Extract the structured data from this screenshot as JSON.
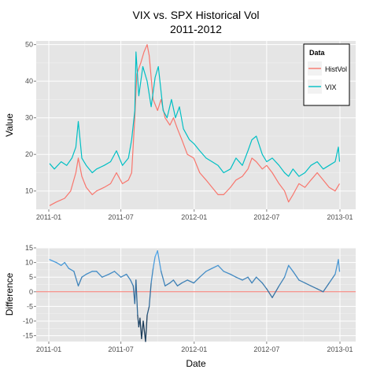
{
  "chart_data": [
    {
      "type": "line",
      "title_line1": "VIX vs. SPX Historical Vol",
      "title_line2": "2011-2012",
      "xlabel": "",
      "ylabel": "Value",
      "x_ticks": [
        "2011-01",
        "2011-07",
        "2012-01",
        "2012-07",
        "2013-01"
      ],
      "y_ticks": [
        10,
        20,
        30,
        40,
        50
      ],
      "ylim": [
        5,
        51
      ],
      "grid": true,
      "legend": {
        "title": "Data",
        "position": "top-right"
      },
      "series": [
        {
          "name": "HistVol",
          "color": "#F8766D",
          "points": [
            [
              "2011-01-03",
              6
            ],
            [
              "2011-01-20",
              7
            ],
            [
              "2011-02-10",
              8
            ],
            [
              "2011-02-25",
              10
            ],
            [
              "2011-03-10",
              15
            ],
            [
              "2011-03-16",
              19
            ],
            [
              "2011-03-25",
              14
            ],
            [
              "2011-04-05",
              11
            ],
            [
              "2011-04-20",
              9
            ],
            [
              "2011-05-01",
              10
            ],
            [
              "2011-05-20",
              11
            ],
            [
              "2011-06-05",
              12
            ],
            [
              "2011-06-20",
              15
            ],
            [
              "2011-07-05",
              12
            ],
            [
              "2011-07-20",
              13
            ],
            [
              "2011-07-28",
              15
            ],
            [
              "2011-08-05",
              30
            ],
            [
              "2011-08-10",
              42
            ],
            [
              "2011-08-20",
              45
            ],
            [
              "2011-08-28",
              48
            ],
            [
              "2011-09-05",
              50
            ],
            [
              "2011-09-10",
              47
            ],
            [
              "2011-09-20",
              35
            ],
            [
              "2011-10-01",
              32
            ],
            [
              "2011-10-10",
              35
            ],
            [
              "2011-10-20",
              30
            ],
            [
              "2011-11-01",
              28
            ],
            [
              "2011-11-10",
              30
            ],
            [
              "2011-11-20",
              27
            ],
            [
              "2011-12-01",
              24
            ],
            [
              "2011-12-15",
              20
            ],
            [
              "2011-12-31",
              19
            ],
            [
              "2012-01-15",
              15
            ],
            [
              "2012-01-31",
              13
            ],
            [
              "2012-02-15",
              11
            ],
            [
              "2012-03-01",
              9
            ],
            [
              "2012-03-15",
              9
            ],
            [
              "2012-04-01",
              11
            ],
            [
              "2012-04-15",
              13
            ],
            [
              "2012-05-01",
              14
            ],
            [
              "2012-05-15",
              16
            ],
            [
              "2012-05-25",
              19
            ],
            [
              "2012-06-05",
              18
            ],
            [
              "2012-06-20",
              16
            ],
            [
              "2012-07-01",
              17
            ],
            [
              "2012-07-15",
              15
            ],
            [
              "2012-08-01",
              12
            ],
            [
              "2012-08-15",
              10
            ],
            [
              "2012-08-25",
              7
            ],
            [
              "2012-09-05",
              9
            ],
            [
              "2012-09-20",
              12
            ],
            [
              "2012-10-05",
              11
            ],
            [
              "2012-10-20",
              13
            ],
            [
              "2012-11-05",
              15
            ],
            [
              "2012-11-20",
              13
            ],
            [
              "2012-12-05",
              11
            ],
            [
              "2012-12-20",
              10
            ],
            [
              "2012-12-31",
              12
            ]
          ]
        },
        {
          "name": "VIX",
          "color": "#00BFC4",
          "points": [
            [
              "2011-01-03",
              17.5
            ],
            [
              "2011-01-15",
              16
            ],
            [
              "2011-02-01",
              18
            ],
            [
              "2011-02-15",
              17
            ],
            [
              "2011-02-28",
              19
            ],
            [
              "2011-03-10",
              22
            ],
            [
              "2011-03-16",
              29
            ],
            [
              "2011-03-25",
              19
            ],
            [
              "2011-04-05",
              17
            ],
            [
              "2011-04-20",
              15
            ],
            [
              "2011-05-01",
              16
            ],
            [
              "2011-05-20",
              17
            ],
            [
              "2011-06-05",
              18
            ],
            [
              "2011-06-20",
              21
            ],
            [
              "2011-07-05",
              17
            ],
            [
              "2011-07-20",
              19
            ],
            [
              "2011-07-28",
              24
            ],
            [
              "2011-08-05",
              32
            ],
            [
              "2011-08-08",
              48
            ],
            [
              "2011-08-15",
              36
            ],
            [
              "2011-08-25",
              44
            ],
            [
              "2011-09-05",
              40
            ],
            [
              "2011-09-15",
              33
            ],
            [
              "2011-09-25",
              41
            ],
            [
              "2011-10-03",
              44
            ],
            [
              "2011-10-15",
              32
            ],
            [
              "2011-10-25",
              30
            ],
            [
              "2011-11-05",
              35
            ],
            [
              "2011-11-15",
              30
            ],
            [
              "2011-11-25",
              33
            ],
            [
              "2011-12-05",
              27
            ],
            [
              "2011-12-20",
              24
            ],
            [
              "2011-12-31",
              23
            ],
            [
              "2012-01-15",
              21
            ],
            [
              "2012-01-31",
              19
            ],
            [
              "2012-02-15",
              18
            ],
            [
              "2012-03-01",
              17
            ],
            [
              "2012-03-15",
              15
            ],
            [
              "2012-04-01",
              16
            ],
            [
              "2012-04-15",
              19
            ],
            [
              "2012-05-01",
              17
            ],
            [
              "2012-05-15",
              21
            ],
            [
              "2012-05-25",
              24
            ],
            [
              "2012-06-05",
              25
            ],
            [
              "2012-06-20",
              20
            ],
            [
              "2012-07-01",
              18
            ],
            [
              "2012-07-15",
              19
            ],
            [
              "2012-08-01",
              17
            ],
            [
              "2012-08-15",
              15
            ],
            [
              "2012-08-25",
              14
            ],
            [
              "2012-09-05",
              16
            ],
            [
              "2012-09-20",
              14
            ],
            [
              "2012-10-05",
              15
            ],
            [
              "2012-10-20",
              17
            ],
            [
              "2012-11-05",
              18
            ],
            [
              "2012-11-20",
              16
            ],
            [
              "2012-12-05",
              17
            ],
            [
              "2012-12-20",
              18
            ],
            [
              "2012-12-28",
              22
            ],
            [
              "2012-12-31",
              18
            ]
          ]
        }
      ]
    },
    {
      "type": "line",
      "xlabel": "Date",
      "ylabel": "Difference",
      "x_ticks": [
        "2011-01",
        "2011-07",
        "2012-01",
        "2012-07",
        "2013-01"
      ],
      "y_ticks": [
        15,
        10,
        5,
        0,
        -5,
        -10,
        -15
      ],
      "ylim": [
        -17,
        15
      ],
      "grid": true,
      "reference_line": {
        "y": 0,
        "color": "#F8766D"
      },
      "color_low": "#132B43",
      "color_high": "#56B1F7",
      "points": [
        [
          "2011-01-03",
          11
        ],
        [
          "2011-01-20",
          10
        ],
        [
          "2011-02-01",
          9
        ],
        [
          "2011-02-10",
          10
        ],
        [
          "2011-02-20",
          8
        ],
        [
          "2011-03-05",
          7
        ],
        [
          "2011-03-16",
          2
        ],
        [
          "2011-03-25",
          5
        ],
        [
          "2011-04-05",
          6
        ],
        [
          "2011-04-20",
          7
        ],
        [
          "2011-05-01",
          7
        ],
        [
          "2011-05-15",
          5
        ],
        [
          "2011-06-01",
          6
        ],
        [
          "2011-06-15",
          7
        ],
        [
          "2011-07-01",
          5
        ],
        [
          "2011-07-15",
          6
        ],
        [
          "2011-07-25",
          4
        ],
        [
          "2011-08-01",
          2
        ],
        [
          "2011-08-05",
          -4
        ],
        [
          "2011-08-08",
          4
        ],
        [
          "2011-08-12",
          -8
        ],
        [
          "2011-08-15",
          -12
        ],
        [
          "2011-08-18",
          -9
        ],
        [
          "2011-08-22",
          -16
        ],
        [
          "2011-08-26",
          -10
        ],
        [
          "2011-09-01",
          -17
        ],
        [
          "2011-09-05",
          -8
        ],
        [
          "2011-09-10",
          -5
        ],
        [
          "2011-09-15",
          3
        ],
        [
          "2011-09-20",
          8
        ],
        [
          "2011-09-25",
          12
        ],
        [
          "2011-10-01",
          14
        ],
        [
          "2011-10-10",
          7
        ],
        [
          "2011-10-20",
          2
        ],
        [
          "2011-11-01",
          3
        ],
        [
          "2011-11-10",
          4
        ],
        [
          "2011-11-20",
          2
        ],
        [
          "2011-12-01",
          3
        ],
        [
          "2011-12-15",
          4
        ],
        [
          "2011-12-31",
          3
        ],
        [
          "2012-01-15",
          5
        ],
        [
          "2012-01-31",
          7
        ],
        [
          "2012-02-15",
          8
        ],
        [
          "2012-03-01",
          9
        ],
        [
          "2012-03-15",
          7
        ],
        [
          "2012-04-01",
          6
        ],
        [
          "2012-04-15",
          5
        ],
        [
          "2012-05-01",
          4
        ],
        [
          "2012-05-15",
          5
        ],
        [
          "2012-05-25",
          3
        ],
        [
          "2012-06-05",
          5
        ],
        [
          "2012-06-20",
          3
        ],
        [
          "2012-07-01",
          1
        ],
        [
          "2012-07-15",
          -2
        ],
        [
          "2012-08-01",
          2
        ],
        [
          "2012-08-15",
          5
        ],
        [
          "2012-08-25",
          9
        ],
        [
          "2012-09-05",
          7
        ],
        [
          "2012-09-20",
          4
        ],
        [
          "2012-10-05",
          3
        ],
        [
          "2012-10-20",
          2
        ],
        [
          "2012-11-05",
          1
        ],
        [
          "2012-11-20",
          0
        ],
        [
          "2012-12-05",
          3
        ],
        [
          "2012-12-20",
          6
        ],
        [
          "2012-12-28",
          11
        ],
        [
          "2012-12-31",
          7
        ]
      ]
    }
  ]
}
